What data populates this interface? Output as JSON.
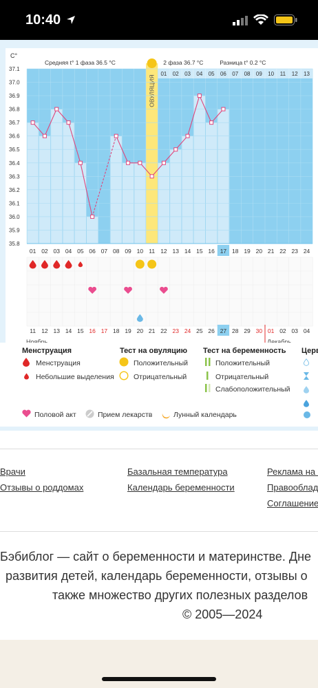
{
  "status_bar": {
    "time": "10:40"
  },
  "chart_data": {
    "type": "line",
    "y_unit": "C°",
    "ylim": [
      35.8,
      37.1
    ],
    "y_ticks": [
      "37.1",
      "37.0",
      "36.9",
      "36.8",
      "36.7",
      "36.6",
      "36.5",
      "36.4",
      "36.3",
      "36.2",
      "36.1",
      "36.0",
      "35.9",
      "35.8"
    ],
    "header_phase1": "Средняя t° 1 фаза 36.5 °С",
    "header_phase2": "2 фаза 36.7 °С",
    "header_diff": "Разница t° 0.2 °С",
    "ovulation_label": "ОВУЛЯЦИЯ",
    "cycle_days": [
      "01",
      "02",
      "03",
      "04",
      "05",
      "06",
      "07",
      "08",
      "09",
      "10",
      "11",
      "12",
      "13",
      "14",
      "15",
      "16",
      "17",
      "18",
      "19",
      "20",
      "21",
      "22",
      "23",
      "24"
    ],
    "cycle_days_top": [
      "01",
      "02",
      "03",
      "04",
      "05",
      "06",
      "07",
      "08",
      "09",
      "10",
      "11",
      "12",
      "13"
    ],
    "current_day": "17",
    "temperatures": [
      36.7,
      36.6,
      36.8,
      36.7,
      36.4,
      36.0,
      null,
      36.6,
      36.4,
      36.4,
      36.3,
      36.4,
      36.5,
      36.6,
      36.9,
      36.7,
      36.8,
      null,
      null,
      null,
      null,
      null,
      null,
      null
    ],
    "dashed_segments": [
      [
        6,
        8
      ]
    ],
    "calendar_dates": [
      "11",
      "12",
      "13",
      "14",
      "15",
      "16",
      "17",
      "18",
      "19",
      "20",
      "21",
      "22",
      "23",
      "24",
      "25",
      "26",
      "27",
      "28",
      "29",
      "30",
      "01",
      "02",
      "03",
      "04"
    ],
    "weekend_dates_idx": [
      5,
      6,
      12,
      13,
      19,
      20
    ],
    "current_date": "27",
    "month_left": "Ноябрь",
    "month_right": "Декабрь",
    "menstruation_days": [
      0,
      1,
      2,
      3
    ],
    "light_bleeding_days": [
      4
    ],
    "ovulation_test_positive_days": [
      9,
      10
    ],
    "intercourse_days": [
      5,
      8,
      11
    ],
    "cervical_days": [
      9
    ],
    "colors": {
      "bar": "#cfeaf9",
      "bg": "#8dd0f0",
      "ovulation": "#fde77a",
      "line": "#e0457b",
      "red": "#e02828",
      "yellow": "#f5c518",
      "blue": "#6ab8e6"
    }
  },
  "legend": {
    "menstruation_title": "Менструация",
    "menstruation": "Менструация",
    "light_bleeding": "Небольшие выделения",
    "ovulation_test_title": "Тест на овуляцию",
    "positive": "Положительный",
    "negative": "Отрицательный",
    "pregnancy_test_title": "Тест на беременность",
    "preg_positive": "Положительный",
    "preg_negative": "Отрицательный",
    "preg_weak": "Слабоположительный",
    "cervical_title": "Церв",
    "intercourse": "Половой акт",
    "medicine": "Прием лекарств",
    "lunar": "Лунный календарь"
  },
  "links": {
    "col1": [
      "Врачи",
      "Отзывы о роддомах"
    ],
    "col2": [
      "Базальная температура",
      "Календарь беременности"
    ],
    "col3": [
      "Реклама на с",
      "Правооблада",
      "Соглашение о"
    ]
  },
  "about": {
    "line1": "Бэбиблог — сайт о беременности и материнстве. Дне",
    "line2": "развития детей, календарь беременности, отзывы о",
    "line3": "также множество других полезных разделов",
    "line4": "© 2005—2024"
  }
}
